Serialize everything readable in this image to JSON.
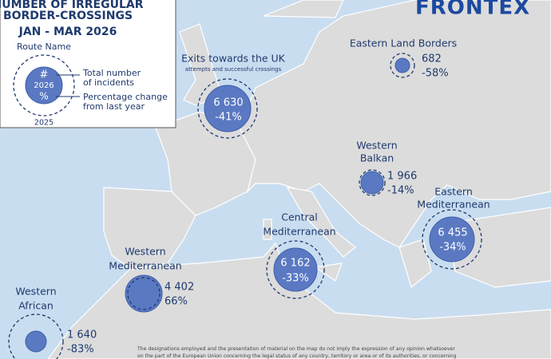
{
  "header": {
    "title_lines": [
      "NUMBER OF IRREGULAR",
      "BORDER-CROSSINGS",
      "JAN - MAR 2026"
    ],
    "logo": "FRONTEX"
  },
  "legend": {
    "route_name": "Route Name",
    "number": "#",
    "year_current": "2026",
    "percent": "%",
    "year_previous": "2025",
    "total_label": [
      "Total number",
      "of incidents"
    ],
    "change_label": [
      "Percentage change",
      "from last year"
    ]
  },
  "routes": [
    {
      "name": [
        "Eastern Land Borders"
      ],
      "total": "682",
      "change": "-58%"
    },
    {
      "name": [
        "Exits towards the UK"
      ],
      "subtitle": "attempts and successful crossings",
      "total": "6 630",
      "change": "-41%"
    },
    {
      "name": [
        "Western",
        "Balkan"
      ],
      "total": "1 966",
      "change": "-14%"
    },
    {
      "name": [
        "Eastern",
        "Mediterranean"
      ],
      "total": "6 455",
      "change": "-34%"
    },
    {
      "name": [
        "Central",
        "Mediterranean"
      ],
      "total": "6 162",
      "change": "-33%"
    },
    {
      "name": [
        "Western",
        "Mediterranean"
      ],
      "total": "4 402",
      "change": "66%"
    },
    {
      "name": [
        "Western",
        "African"
      ],
      "total": "1 640",
      "change": "-83%"
    }
  ],
  "disclaimer": [
    "The designations employed and the presentation of material on the map do not imply the expression of any opinion whatsoever",
    "on the part of the European Union concerning the legal status of any country, territory or area or of its authorities, or concerning"
  ]
}
